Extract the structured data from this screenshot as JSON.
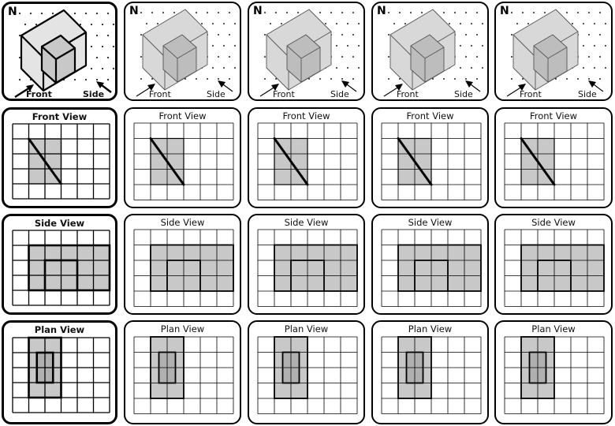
{
  "labels": {
    "north": "N",
    "front": "Front",
    "side": "Side",
    "front_view": "Front View",
    "side_view": "Side View",
    "plan_view": "Plan View"
  },
  "colors": {
    "fill": "#c8c8c8",
    "inner_fill": "#b0b0b0",
    "grid": "#000000",
    "border": "#000000"
  },
  "options": [
    {
      "front": "A",
      "side": "A",
      "plan": "A"
    },
    {
      "front": "A",
      "side": "B",
      "plan": "B"
    },
    {
      "front": "A",
      "side": "B",
      "plan": "B"
    },
    {
      "front": "A",
      "side": "B",
      "plan": "B"
    },
    {
      "front": "A",
      "side": "C",
      "plan": "C"
    }
  ]
}
